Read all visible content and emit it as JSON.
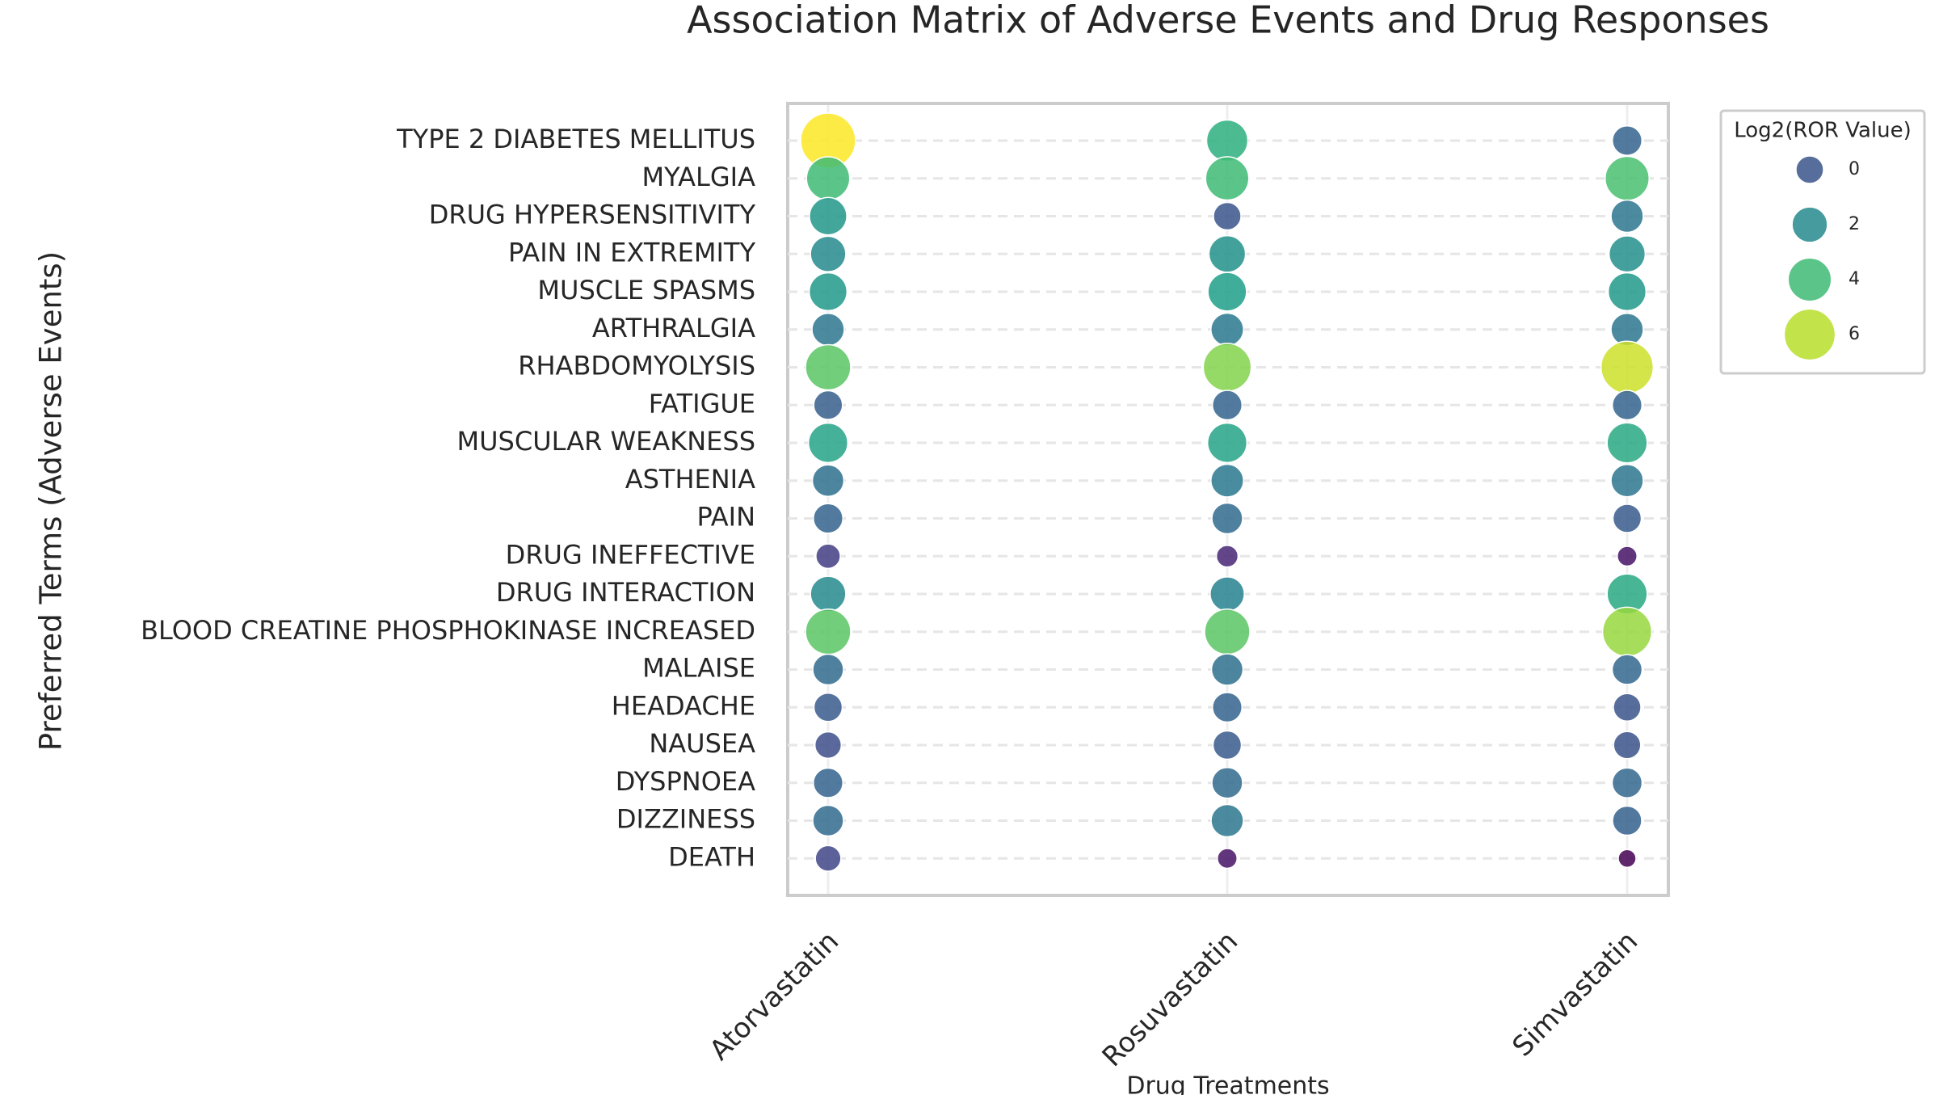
{
  "chart_data": {
    "type": "bubble-matrix",
    "title": "Association Matrix of Adverse Events and Drug Responses",
    "x_label": "Drug Treatments",
    "y_label": "Preferred Terms (Adverse Events)",
    "categories": [
      "TYPE 2 DIABETES MELLITUS",
      "MYALGIA",
      "DRUG HYPERSENSITIVITY",
      "PAIN IN EXTREMITY",
      "MUSCLE SPASMS",
      "ARTHRALGIA",
      "RHABDOMYOLYSIS",
      "FATIGUE",
      "MUSCULAR WEAKNESS",
      "ASTHENIA",
      "PAIN",
      "DRUG INEFFECTIVE",
      "DRUG INTERACTION",
      "BLOOD CREATINE PHOSPHOKINASE INCREASED",
      "MALAISE",
      "HEADACHE",
      "NAUSEA",
      "DYSPNOEA",
      "DIZZINESS",
      "DEATH"
    ],
    "series": [
      {
        "name": "Atorvastatin",
        "values": [
          7,
          4,
          2.5,
          2,
          2.6,
          1.2,
          4.5,
          0.3,
          3,
          1,
          0.5,
          -0.8,
          2,
          4.5,
          0.8,
          0.2,
          -0.3,
          0.5,
          0.8,
          -0.5
        ]
      },
      {
        "name": "Rosuvastatin",
        "values": [
          3.5,
          4,
          0,
          2.3,
          2.8,
          1.3,
          5.2,
          0.5,
          3,
          1.3,
          0.8,
          -1.5,
          1.7,
          4.5,
          1,
          0.5,
          0.2,
          0.8,
          1.2,
          -2
        ]
      },
      {
        "name": "Simvastatin",
        "values": [
          0.5,
          4.2,
          1.2,
          2.2,
          2.6,
          1.2,
          6.3,
          0.5,
          3.2,
          1.2,
          0.2,
          -2,
          3.2,
          5.5,
          0.6,
          0,
          -0.1,
          0.6,
          0.4,
          -2.5
        ]
      }
    ],
    "colormap": "viridis",
    "grid": true,
    "legend": {
      "title": "Log2(ROR Value)",
      "values": [
        0,
        2,
        4,
        6
      ],
      "position": "outside right"
    }
  }
}
